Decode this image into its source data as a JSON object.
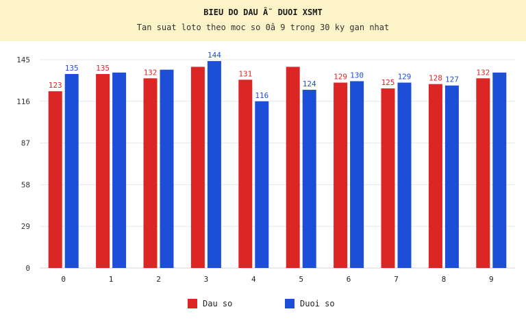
{
  "header": {
    "title": "BIEU DO DAU Â˜ DUOI XSMT",
    "subtitle": "Tan suat loto theo moc so 0â  9 trong 30 ky gan nhat"
  },
  "chart_data": {
    "type": "bar",
    "categories": [
      "0",
      "1",
      "2",
      "3",
      "4",
      "5",
      "6",
      "7",
      "8",
      "9"
    ],
    "series": [
      {
        "name": "Dau so",
        "color": "#dc2626",
        "values": [
          123,
          135,
          132,
          140,
          131,
          140,
          129,
          125,
          128,
          132
        ],
        "labels": [
          "123",
          "135",
          "132",
          "",
          "131",
          "",
          "129",
          "125",
          "128",
          "132"
        ]
      },
      {
        "name": "Duoi so",
        "color": "#1d4ed8",
        "values": [
          135,
          136,
          138,
          144,
          116,
          124,
          130,
          129,
          127,
          136
        ],
        "labels": [
          "135",
          "",
          "",
          "144",
          "116",
          "124",
          "130",
          "129",
          "127",
          ""
        ]
      }
    ],
    "yticks": [
      "0",
      "29",
      "58",
      "87",
      "116",
      "145"
    ],
    "ylim": [
      0,
      145
    ],
    "grid": true,
    "legend": "bottom-center"
  }
}
